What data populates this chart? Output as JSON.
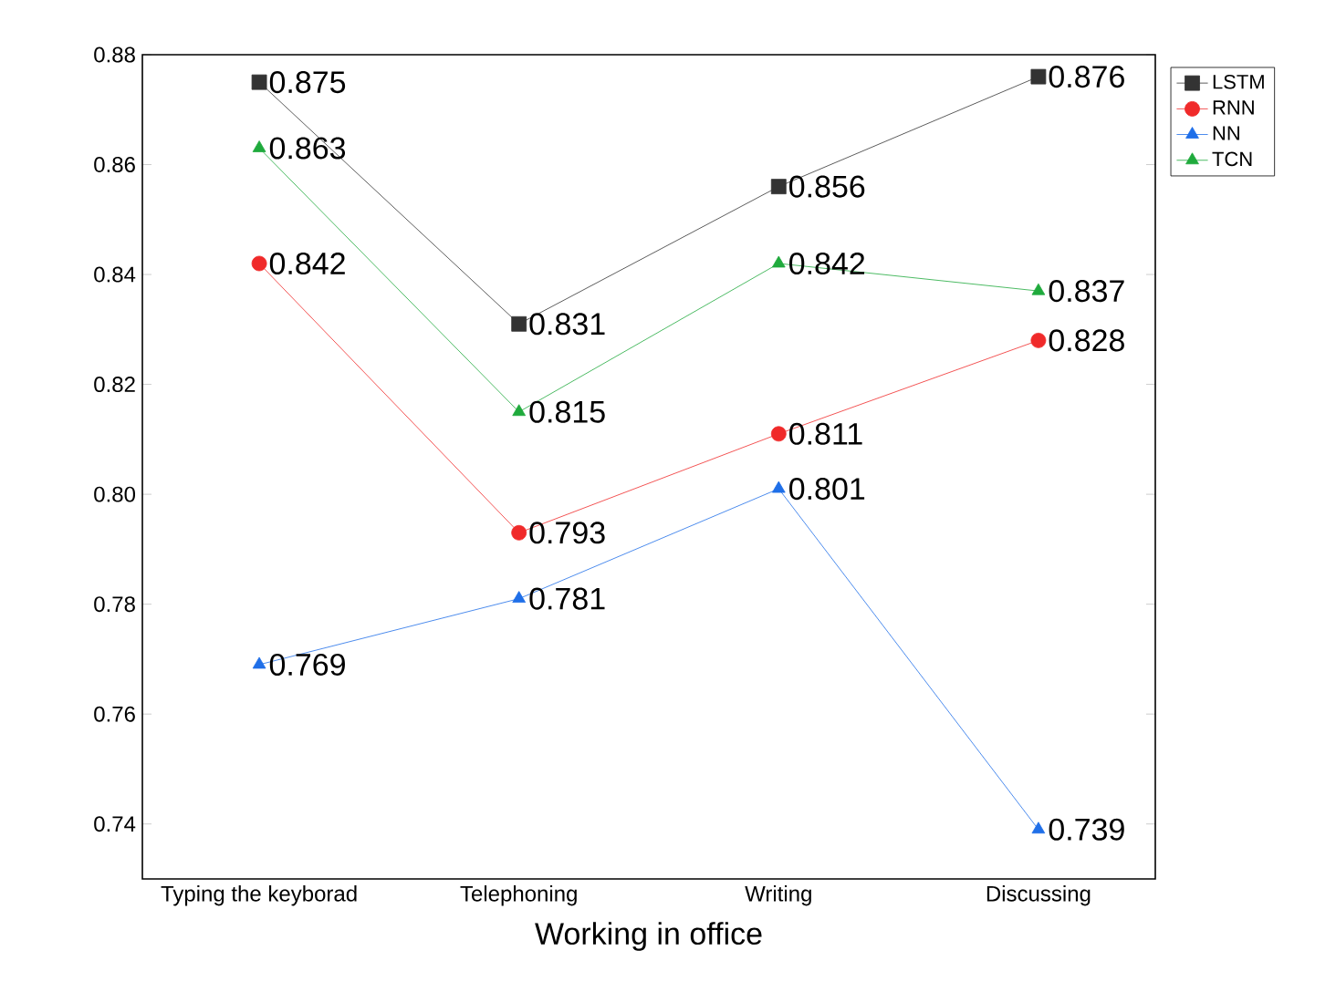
{
  "chart_data": {
    "type": "line",
    "xlabel": "Working in office",
    "categories": [
      "Typing the keyborad",
      "Telephoning",
      "Writing",
      "Discussing"
    ],
    "series": [
      {
        "name": "LSTM",
        "color": "#333333",
        "marker": "square",
        "values": [
          0.875,
          0.831,
          0.856,
          0.876
        ]
      },
      {
        "name": "RNN",
        "color": "#f02a2a",
        "marker": "circle",
        "values": [
          0.842,
          0.793,
          0.811,
          0.828
        ]
      },
      {
        "name": "NN",
        "color": "#1f6fe8",
        "marker": "triangle",
        "values": [
          0.769,
          0.781,
          0.801,
          0.739
        ]
      },
      {
        "name": "TCN",
        "color": "#1faa3c",
        "marker": "triangle down",
        "values": [
          0.863,
          0.815,
          0.842,
          0.837
        ]
      }
    ],
    "ylim": [
      0.73,
      0.88
    ],
    "yticks": [
      {
        "value": 0.74,
        "label": "0.74"
      },
      {
        "value": 0.76,
        "label": "0.76"
      },
      {
        "value": 0.78,
        "label": "0.78"
      },
      {
        "value": 0.8,
        "label": "0.80"
      },
      {
        "value": 0.82,
        "label": "0.82"
      },
      {
        "value": 0.84,
        "label": "0.84"
      },
      {
        "value": 0.86,
        "label": "0.86"
      },
      {
        "value": 0.88,
        "label": "0.88"
      }
    ],
    "data_labels": true,
    "legend": "top right",
    "grid": false,
    "line_style": "solid"
  }
}
